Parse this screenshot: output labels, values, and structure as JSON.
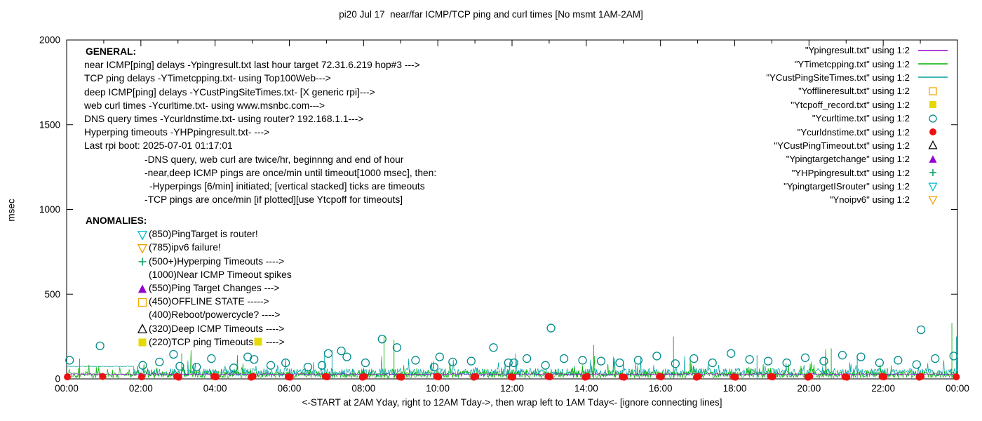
{
  "title": "pi20 Jul 17  near/far ICMP/TCP ping and curl times [No msmt 1AM-2AM]",
  "ylabel": "msec",
  "xlabel": "<-START at 2AM Yday, right to 12AM Tday->, then wrap left to 1AM Tday<- [ignore connecting lines]",
  "chart_data": {
    "type": "line+scatter",
    "x_range_hours": [
      0,
      24
    ],
    "ylim": [
      0,
      2000
    ],
    "y_ticks": [
      0,
      500,
      1000,
      1500,
      2000
    ],
    "x_ticks": [
      "00:00",
      "02:00",
      "04:00",
      "06:00",
      "08:00",
      "10:00",
      "12:00",
      "14:00",
      "16:00",
      "18:00",
      "20:00",
      "22:00",
      "00:00"
    ],
    "grid": false,
    "legend_position": "top-right",
    "legend": [
      {
        "label": "\"Ypingresult.txt\" using 1:2",
        "marker": "line",
        "color": "#9400d3"
      },
      {
        "label": "\"YTimetcpping.txt\" using 1:2",
        "marker": "line",
        "color": "#00b000"
      },
      {
        "label": "\"YCustPingSiteTimes.txt\" using 1:2",
        "marker": "line",
        "color": "#00a0a0"
      },
      {
        "label": "\"Yofflineresult.txt\" using 1:2",
        "marker": "square-open",
        "color": "#f5a800"
      },
      {
        "label": "\"Ytcpoff_record.txt\" using 1:2",
        "marker": "square-filled",
        "color": "#e6d800"
      },
      {
        "label": "\"Ycurltime.txt\" using 1:2",
        "marker": "circle-open",
        "color": "#008b8b"
      },
      {
        "label": "\"Ycurldnstime.txt\" using 1:2",
        "marker": "circle-filled",
        "color": "#ee1111"
      },
      {
        "label": "\"YCustPingTimeout.txt\" using 1:2",
        "marker": "triangle-up-open",
        "color": "#000000"
      },
      {
        "label": "\"Ypingtargetchange\" using 1:2",
        "marker": "triangle-up-filled",
        "color": "#9400d3"
      },
      {
        "label": "\"YHPpingresult.txt\" using 1:2",
        "marker": "plus",
        "color": "#00a060"
      },
      {
        "label": "\"YpingtargetISrouter\" using 1:2",
        "marker": "triangle-down-open",
        "color": "#00bbcc"
      },
      {
        "label": "\"Ynoipv6\" using 1:2",
        "marker": "triangle-down-open",
        "color": "#f0a000"
      }
    ],
    "line_series": [
      {
        "name": "YCustPingSiteTimes",
        "color": "#00a0a0",
        "seed": 11,
        "points": 1440,
        "base": 14,
        "noise": 48,
        "spike_p": 0.05,
        "spike_amp": 80,
        "spike2_p": 0.0,
        "spike2_amp": 0,
        "flat_until": 1.8,
        "flat_value": 72,
        "spikes": [
          [
            0.35,
            120
          ],
          [
            6.95,
            165
          ],
          [
            7.15,
            170
          ],
          [
            12.1,
            150
          ],
          [
            18.6,
            140
          ],
          [
            21.3,
            130
          ],
          [
            23.97,
            250
          ]
        ]
      },
      {
        "name": "YTimetcpping",
        "color": "#00b000",
        "seed": 5,
        "points": 1440,
        "base": 5,
        "noise": 40,
        "spike_p": 0.06,
        "spike_amp": 60,
        "spike2_p": 0.008,
        "spike2_amp": 150,
        "spikes": [
          [
            3.1,
            150
          ],
          [
            8.55,
            250
          ],
          [
            8.82,
            230
          ],
          [
            14.2,
            200
          ],
          [
            16.35,
            250
          ],
          [
            20.6,
            180
          ],
          [
            23.85,
            330
          ]
        ]
      },
      {
        "name": "Ypingresult",
        "color": "#9400d3",
        "seed": 3,
        "points": 720,
        "base": 24,
        "noise": 7,
        "spike_p": 0.0,
        "spike_amp": 0,
        "spike2_p": 0.0,
        "spike2_amp": 0,
        "spikes": []
      }
    ],
    "scatter_series": [
      {
        "name": "Ycurltime",
        "marker": "circle-open",
        "color": "#008b8b",
        "size": 5.5,
        "points": [
          [
            0.08,
            110
          ],
          [
            0.9,
            195
          ],
          [
            2.05,
            80
          ],
          [
            2.5,
            100
          ],
          [
            2.88,
            145
          ],
          [
            3.05,
            75
          ],
          [
            3.5,
            70
          ],
          [
            3.9,
            120
          ],
          [
            4.5,
            65
          ],
          [
            4.88,
            130
          ],
          [
            5.05,
            115
          ],
          [
            5.5,
            80
          ],
          [
            5.9,
            95
          ],
          [
            6.5,
            70
          ],
          [
            6.88,
            80
          ],
          [
            7.05,
            150
          ],
          [
            7.4,
            165
          ],
          [
            7.55,
            130
          ],
          [
            8.05,
            95
          ],
          [
            8.5,
            235
          ],
          [
            8.9,
            185
          ],
          [
            9.4,
            110
          ],
          [
            9.9,
            70
          ],
          [
            10.05,
            130
          ],
          [
            10.4,
            100
          ],
          [
            10.9,
            105
          ],
          [
            11.5,
            185
          ],
          [
            11.9,
            95
          ],
          [
            12.05,
            95
          ],
          [
            12.4,
            120
          ],
          [
            12.9,
            80
          ],
          [
            13.05,
            300
          ],
          [
            13.4,
            120
          ],
          [
            13.9,
            110
          ],
          [
            14.4,
            105
          ],
          [
            14.9,
            95
          ],
          [
            15.4,
            110
          ],
          [
            15.9,
            135
          ],
          [
            16.4,
            90
          ],
          [
            16.9,
            120
          ],
          [
            17.4,
            95
          ],
          [
            17.9,
            150
          ],
          [
            18.4,
            115
          ],
          [
            18.9,
            105
          ],
          [
            19.4,
            95
          ],
          [
            19.9,
            125
          ],
          [
            20.4,
            105
          ],
          [
            20.9,
            140
          ],
          [
            21.4,
            130
          ],
          [
            21.9,
            95
          ],
          [
            22.4,
            110
          ],
          [
            22.9,
            85
          ],
          [
            23.02,
            290
          ],
          [
            23.4,
            120
          ],
          [
            23.9,
            135
          ]
        ]
      },
      {
        "name": "Ycurldnstime",
        "marker": "circle-filled",
        "color": "#ee1111",
        "size": 5,
        "points": [
          [
            0.02,
            12
          ],
          [
            0.97,
            14
          ],
          [
            2.02,
            12
          ],
          [
            2.97,
            14
          ],
          [
            3.02,
            10
          ],
          [
            3.97,
            14
          ],
          [
            4.02,
            12
          ],
          [
            4.97,
            10
          ],
          [
            5.02,
            14
          ],
          [
            5.97,
            12
          ],
          [
            6.02,
            10
          ],
          [
            6.97,
            14
          ],
          [
            7.02,
            12
          ],
          [
            7.97,
            10
          ],
          [
            8.02,
            14
          ],
          [
            8.97,
            12
          ],
          [
            9.02,
            10
          ],
          [
            9.97,
            14
          ],
          [
            10.02,
            12
          ],
          [
            10.97,
            10
          ],
          [
            11.02,
            14
          ],
          [
            11.97,
            12
          ],
          [
            12.02,
            10
          ],
          [
            12.97,
            14
          ],
          [
            13.02,
            12
          ],
          [
            13.97,
            10
          ],
          [
            14.02,
            14
          ],
          [
            14.97,
            12
          ],
          [
            15.02,
            10
          ],
          [
            15.97,
            14
          ],
          [
            16.02,
            12
          ],
          [
            16.97,
            10
          ],
          [
            17.02,
            14
          ],
          [
            17.97,
            12
          ],
          [
            18.02,
            10
          ],
          [
            18.97,
            14
          ],
          [
            19.02,
            12
          ],
          [
            19.97,
            10
          ],
          [
            20.02,
            14
          ],
          [
            20.97,
            12
          ],
          [
            21.02,
            10
          ],
          [
            21.97,
            14
          ],
          [
            22.02,
            12
          ],
          [
            22.97,
            10
          ],
          [
            23.02,
            14
          ],
          [
            23.97,
            12
          ]
        ]
      }
    ]
  },
  "annotations": {
    "general": [
      {
        "text": "GENERAL:",
        "bold": true,
        "indent": 2
      },
      {
        "text": "near ICMP[ping] delays -Ypingresult.txt last hour target 72.31.6.219 hop#3 --->",
        "indent": 0
      },
      {
        "text": "TCP ping delays -YTimetcpping.txt- using Top100Web--->",
        "indent": 0
      },
      {
        "text": "deep ICMP[ping] delays -YCustPingSiteTimes.txt- [X generic rpi]--->",
        "indent": 0
      },
      {
        "text": "web curl times -Ycurltime.txt- using www.msnbc.com--->",
        "indent": 0
      },
      {
        "text": "DNS query times -Ycurldnstime.txt- using router? 192.168.1.1--->",
        "indent": 0
      },
      {
        "text": "Hyperping timeouts -YHPpingresult.txt- --->",
        "indent": 0
      },
      {
        "text": "Last rpi boot: 2025-07-01 01:17:01",
        "indent": 0
      },
      {
        "text": "-DNS query, web curl are twice/hr, beginnng and end of hour",
        "indent": 86
      },
      {
        "text": "-near,deep ICMP pings are once/min until timeout[1000 msec], then:",
        "indent": 86
      },
      {
        "text": "-Hyperpings [6/min] initiated; [vertical stacked] ticks are timeouts",
        "indent": 93
      },
      {
        "text": "-TCP pings are once/min [if plotted][use Ytcpoff for timeouts]",
        "indent": 86
      }
    ],
    "anomalies_header": "ANOMALIES:",
    "anomalies": [
      {
        "marker": "triangle-down-open",
        "color": "#00bbcc",
        "text": "(850)PingTarget is router!"
      },
      {
        "marker": "triangle-down-open",
        "color": "#f0a000",
        "text": "(785)ipv6 failure!"
      },
      {
        "marker": "plus",
        "color": "#00a060",
        "text": "(500+)Hyperping Timeouts ---->"
      },
      {
        "marker": "none",
        "color": "",
        "text": "(1000)Near ICMP Timeout spikes"
      },
      {
        "marker": "triangle-up-filled",
        "color": "#9400d3",
        "text": "(550)Ping Target Changes --->"
      },
      {
        "marker": "square-open",
        "color": "#f5a800",
        "text": "(450)OFFLINE STATE ----->"
      },
      {
        "marker": "none",
        "color": "",
        "text": "(400)Reboot/powercycle? ---->"
      },
      {
        "marker": "triangle-up-open",
        "color": "#000000",
        "text": "(320)Deep ICMP Timeouts ---->"
      },
      {
        "marker": "square-filled",
        "color": "#e6d800",
        "text": "(220)TCP ping Timeouts",
        "marker2": "square-filled",
        "color2": "#e6d800",
        "suffix": " ---->"
      }
    ]
  }
}
